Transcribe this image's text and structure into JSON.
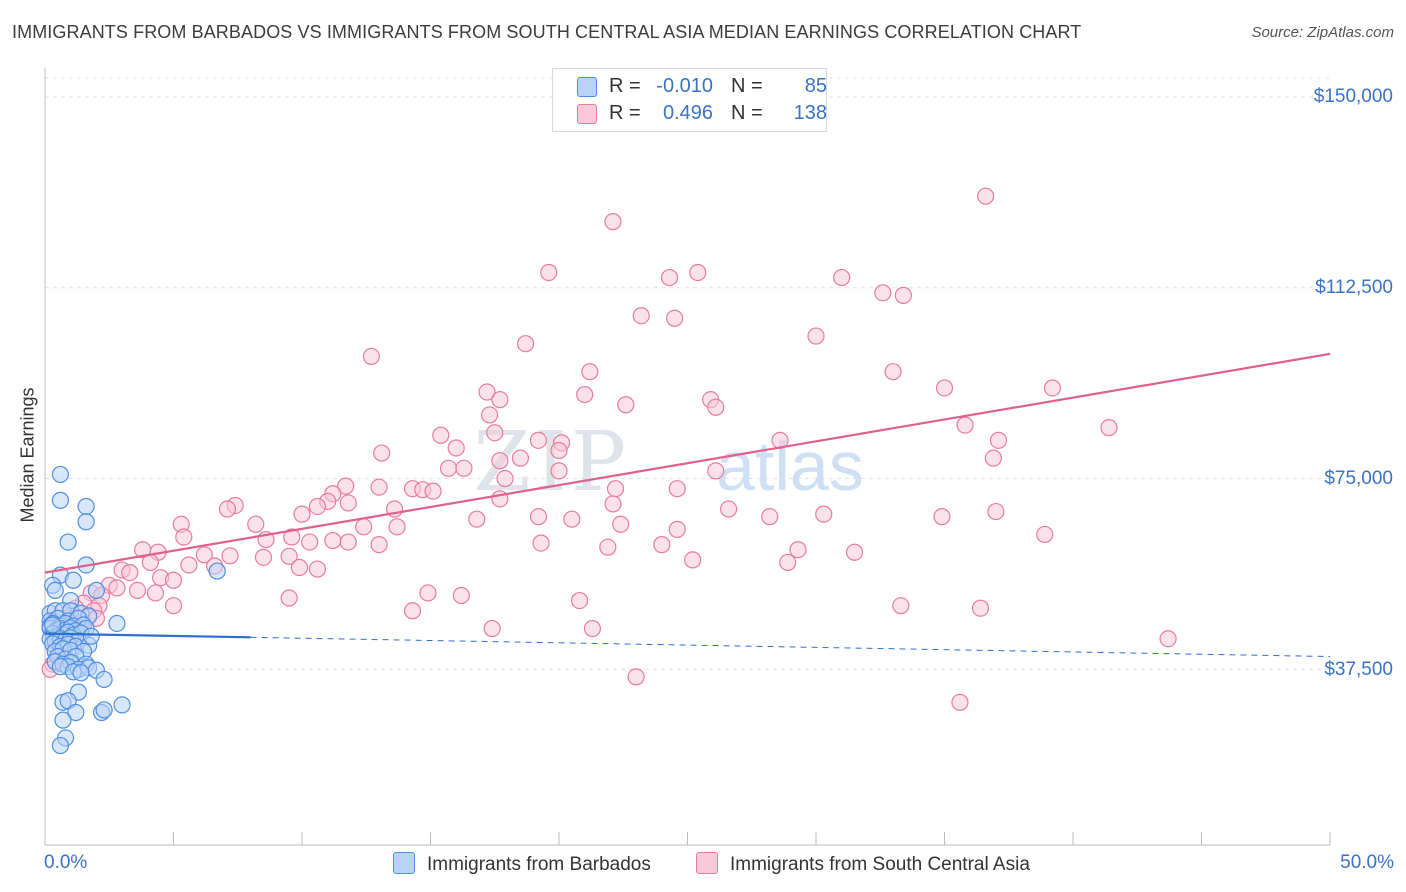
{
  "title": "IMMIGRANTS FROM BARBADOS VS IMMIGRANTS FROM SOUTH CENTRAL ASIA MEDIAN EARNINGS CORRELATION CHART",
  "source": "Source: ZipAtlas.com",
  "watermark": {
    "zip": "ZIP",
    "atlas": "atlas"
  },
  "legend": {
    "r_label": "R =",
    "n_label": "N =",
    "series": [
      {
        "r": "-0.010",
        "n": "85"
      },
      {
        "r": "0.496",
        "n": "138"
      }
    ]
  },
  "colors": {
    "blue": "#4f8ee0",
    "blue_fill": "#b9d3f5",
    "blue_line": "#2e6fd0",
    "pink": "#e87ba0",
    "pink_fill": "#f8c9d8",
    "pink_line": "#e0608b",
    "axis_text": "#3a72c6"
  },
  "chart_data": {
    "type": "scatter",
    "title": "IMMIGRANTS FROM BARBADOS VS IMMIGRANTS FROM SOUTH CENTRAL ASIA MEDIAN EARNINGS CORRELATION CHART",
    "ylabel": "Median Earnings",
    "xlabel": "",
    "xlim": [
      0,
      50
    ],
    "ylim": [
      0,
      150000
    ],
    "x_tick_labels": [
      "0.0%",
      "50.0%"
    ],
    "y_ticks": [
      {
        "value": 150000,
        "label": "$150,000"
      },
      {
        "value": 112500,
        "label": "$112,500"
      },
      {
        "value": 75000,
        "label": "$75,000"
      },
      {
        "value": 37500,
        "label": "$37,500"
      }
    ],
    "grid": "horizontal dashed",
    "legend_position": "top-center",
    "series": [
      {
        "name": "Immigrants from Barbados",
        "r": -0.01,
        "n": 85,
        "trend": {
          "x0": 0,
          "y0": 44500,
          "x1": 50,
          "y1": 40000,
          "solid_until_x": 8.0
        },
        "points": [
          [
            0.6,
            75800
          ],
          [
            0.6,
            70700
          ],
          [
            1.6,
            69500
          ],
          [
            1.6,
            66500
          ],
          [
            0.9,
            62500
          ],
          [
            1.6,
            58000
          ],
          [
            0.6,
            56000
          ],
          [
            0.3,
            54000
          ],
          [
            1.1,
            55000
          ],
          [
            0.4,
            53000
          ],
          [
            2.0,
            53000
          ],
          [
            1.0,
            51000
          ],
          [
            0.2,
            48500
          ],
          [
            0.4,
            49000
          ],
          [
            0.7,
            49000
          ],
          [
            1.0,
            49000
          ],
          [
            1.4,
            48500
          ],
          [
            1.7,
            48000
          ],
          [
            0.2,
            47000
          ],
          [
            0.5,
            47500
          ],
          [
            0.9,
            47000
          ],
          [
            1.3,
            47500
          ],
          [
            0.2,
            46000
          ],
          [
            0.3,
            46500
          ],
          [
            0.6,
            46000
          ],
          [
            0.8,
            46500
          ],
          [
            1.1,
            46000
          ],
          [
            1.5,
            46200
          ],
          [
            2.8,
            46500
          ],
          [
            0.2,
            45500
          ],
          [
            0.4,
            45000
          ],
          [
            0.6,
            45500
          ],
          [
            0.8,
            45200
          ],
          [
            1.0,
            45600
          ],
          [
            1.2,
            45100
          ],
          [
            1.6,
            45500
          ],
          [
            0.3,
            44500
          ],
          [
            0.5,
            44000
          ],
          [
            0.7,
            44300
          ],
          [
            0.9,
            44800
          ],
          [
            1.1,
            44200
          ],
          [
            1.4,
            44600
          ],
          [
            0.2,
            43500
          ],
          [
            0.4,
            43000
          ],
          [
            0.6,
            43500
          ],
          [
            0.8,
            43200
          ],
          [
            1.0,
            43700
          ],
          [
            1.3,
            43100
          ],
          [
            0.3,
            42500
          ],
          [
            0.6,
            42000
          ],
          [
            0.9,
            42400
          ],
          [
            1.2,
            42000
          ],
          [
            1.7,
            42200
          ],
          [
            0.4,
            41000
          ],
          [
            0.7,
            41500
          ],
          [
            1.0,
            41200
          ],
          [
            1.5,
            41000
          ],
          [
            0.5,
            40000
          ],
          [
            0.8,
            39500
          ],
          [
            1.2,
            40000
          ],
          [
            0.4,
            39000
          ],
          [
            0.7,
            38500
          ],
          [
            1.0,
            38800
          ],
          [
            1.6,
            38500
          ],
          [
            0.9,
            38000
          ],
          [
            1.3,
            37500
          ],
          [
            0.6,
            38000
          ],
          [
            1.7,
            37800
          ],
          [
            1.1,
            37000
          ],
          [
            1.4,
            36800
          ],
          [
            2.0,
            37300
          ],
          [
            2.3,
            35500
          ],
          [
            1.3,
            33000
          ],
          [
            0.7,
            31000
          ],
          [
            0.9,
            31300
          ],
          [
            3.0,
            30500
          ],
          [
            2.2,
            29000
          ],
          [
            2.3,
            29500
          ],
          [
            1.2,
            29000
          ],
          [
            0.7,
            27500
          ],
          [
            0.8,
            24000
          ],
          [
            0.6,
            22500
          ],
          [
            6.7,
            56800
          ],
          [
            0.3,
            46200
          ],
          [
            1.8,
            44000
          ]
        ]
      },
      {
        "name": "Immigrants from South Central Asia",
        "r": 0.496,
        "n": 138,
        "trend": {
          "x0": 0,
          "y0": 56500,
          "x1": 50,
          "y1": 99500
        },
        "points": [
          [
            36.6,
            130500
          ],
          [
            22.1,
            125500
          ],
          [
            19.6,
            115500
          ],
          [
            24.3,
            114500
          ],
          [
            25.4,
            115500
          ],
          [
            31.0,
            114500
          ],
          [
            32.6,
            111500
          ],
          [
            33.4,
            111000
          ],
          [
            23.2,
            107000
          ],
          [
            24.5,
            106500
          ],
          [
            30.0,
            103000
          ],
          [
            18.7,
            101500
          ],
          [
            12.7,
            99000
          ],
          [
            21.2,
            96000
          ],
          [
            33.0,
            96000
          ],
          [
            17.2,
            92000
          ],
          [
            35.0,
            92800
          ],
          [
            39.2,
            92800
          ],
          [
            21.0,
            91500
          ],
          [
            17.7,
            90500
          ],
          [
            22.6,
            89500
          ],
          [
            25.9,
            90500
          ],
          [
            26.1,
            89000
          ],
          [
            17.3,
            87500
          ],
          [
            17.5,
            84000
          ],
          [
            35.8,
            85500
          ],
          [
            41.4,
            85000
          ],
          [
            15.4,
            83500
          ],
          [
            19.2,
            82500
          ],
          [
            20.1,
            82000
          ],
          [
            28.6,
            82500
          ],
          [
            37.1,
            82500
          ],
          [
            16.0,
            81000
          ],
          [
            20.0,
            80500
          ],
          [
            13.1,
            80000
          ],
          [
            18.5,
            79000
          ],
          [
            17.7,
            78500
          ],
          [
            36.9,
            79000
          ],
          [
            15.7,
            77000
          ],
          [
            16.3,
            77000
          ],
          [
            20.0,
            76500
          ],
          [
            26.1,
            76500
          ],
          [
            17.9,
            75000
          ],
          [
            11.7,
            73500
          ],
          [
            13.0,
            73300
          ],
          [
            14.3,
            73000
          ],
          [
            14.7,
            72800
          ],
          [
            15.1,
            72500
          ],
          [
            22.2,
            73000
          ],
          [
            24.6,
            73000
          ],
          [
            11.2,
            72000
          ],
          [
            17.7,
            71000
          ],
          [
            11.0,
            70500
          ],
          [
            11.8,
            70200
          ],
          [
            22.1,
            70000
          ],
          [
            7.4,
            69700
          ],
          [
            10.6,
            69500
          ],
          [
            13.6,
            69000
          ],
          [
            26.6,
            69000
          ],
          [
            7.1,
            69000
          ],
          [
            10.0,
            68000
          ],
          [
            28.2,
            67500
          ],
          [
            30.3,
            68000
          ],
          [
            34.9,
            67500
          ],
          [
            37.0,
            68500
          ],
          [
            16.8,
            67000
          ],
          [
            19.2,
            67500
          ],
          [
            20.5,
            67000
          ],
          [
            22.4,
            66000
          ],
          [
            5.3,
            66000
          ],
          [
            8.2,
            66000
          ],
          [
            12.4,
            65500
          ],
          [
            13.7,
            65500
          ],
          [
            24.6,
            65000
          ],
          [
            38.9,
            64000
          ],
          [
            5.4,
            63500
          ],
          [
            8.6,
            63000
          ],
          [
            9.6,
            63500
          ],
          [
            10.3,
            62500
          ],
          [
            11.2,
            62800
          ],
          [
            11.8,
            62500
          ],
          [
            13.0,
            62000
          ],
          [
            19.3,
            62300
          ],
          [
            24.0,
            62000
          ],
          [
            21.9,
            61500
          ],
          [
            29.3,
            61000
          ],
          [
            31.5,
            60500
          ],
          [
            3.8,
            61000
          ],
          [
            4.4,
            60500
          ],
          [
            6.2,
            60000
          ],
          [
            7.2,
            59800
          ],
          [
            8.5,
            59500
          ],
          [
            9.5,
            59700
          ],
          [
            4.1,
            58500
          ],
          [
            5.6,
            58000
          ],
          [
            6.6,
            57800
          ],
          [
            9.9,
            57500
          ],
          [
            10.6,
            57200
          ],
          [
            25.2,
            59000
          ],
          [
            28.9,
            58500
          ],
          [
            3.0,
            57000
          ],
          [
            3.3,
            56500
          ],
          [
            4.5,
            55500
          ],
          [
            5.0,
            55000
          ],
          [
            2.5,
            54000
          ],
          [
            2.8,
            53500
          ],
          [
            3.6,
            53000
          ],
          [
            4.3,
            52500
          ],
          [
            1.8,
            52500
          ],
          [
            2.2,
            52000
          ],
          [
            9.5,
            51500
          ],
          [
            14.9,
            52500
          ],
          [
            16.2,
            52000
          ],
          [
            20.8,
            51000
          ],
          [
            1.5,
            50500
          ],
          [
            2.1,
            50000
          ],
          [
            5.0,
            50000
          ],
          [
            33.3,
            50000
          ],
          [
            1.2,
            49500
          ],
          [
            1.9,
            49000
          ],
          [
            14.3,
            49000
          ],
          [
            36.4,
            49500
          ],
          [
            1.0,
            48000
          ],
          [
            1.7,
            47800
          ],
          [
            2.0,
            47500
          ],
          [
            0.8,
            47000
          ],
          [
            1.4,
            46500
          ],
          [
            17.4,
            45500
          ],
          [
            21.3,
            45500
          ],
          [
            0.6,
            44500
          ],
          [
            1.1,
            44000
          ],
          [
            43.7,
            43500
          ],
          [
            0.5,
            42500
          ],
          [
            0.8,
            42000
          ],
          [
            0.4,
            41000
          ],
          [
            0.6,
            40000
          ],
          [
            0.3,
            38500
          ],
          [
            0.2,
            37500
          ],
          [
            23.0,
            36000
          ],
          [
            35.6,
            31000
          ]
        ]
      }
    ]
  }
}
